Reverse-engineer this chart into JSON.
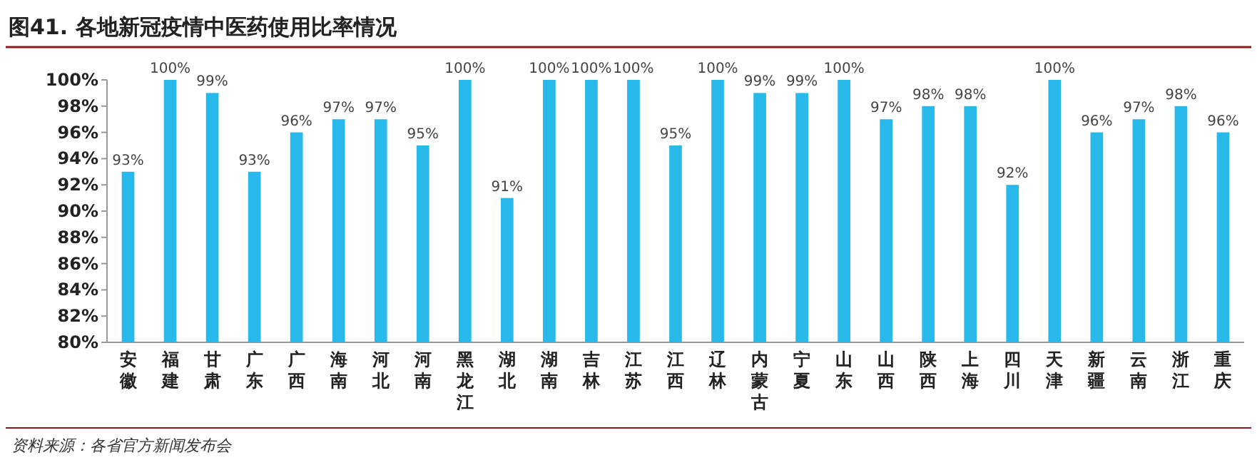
{
  "chart_data": {
    "type": "bar",
    "title": "图41. 各地新冠疫情中医药使用比率情况",
    "categories": [
      "安徽",
      "福建",
      "甘肃",
      "广东",
      "广西",
      "海南",
      "河北",
      "河南",
      "黑龙江",
      "湖北",
      "湖南",
      "吉林",
      "江苏",
      "江西",
      "辽林",
      "内蒙古",
      "宁夏",
      "山东",
      "山西",
      "陕西",
      "上海",
      "四川",
      "天津",
      "新疆",
      "云南",
      "浙江",
      "重庆"
    ],
    "values": [
      93,
      100,
      99,
      93,
      96,
      97,
      97,
      95,
      100,
      91,
      100,
      100,
      100,
      95,
      100,
      99,
      99,
      100,
      97,
      98,
      98,
      92,
      100,
      96,
      97,
      98,
      96
    ],
    "value_labels": [
      "93%",
      "100%",
      "99%",
      "93%",
      "96%",
      "97%",
      "97%",
      "95%",
      "100%",
      "91%",
      "100%",
      "100%",
      "100%",
      "95%",
      "100%",
      "99%",
      "99%",
      "100%",
      "97%",
      "98%",
      "98%",
      "92%",
      "100%",
      "96%",
      "97%",
      "98%",
      "96%"
    ],
    "color": "#27b9ea",
    "ylim": [
      80,
      100
    ],
    "yticks": [
      {
        "value": 80,
        "label": "80%"
      },
      {
        "value": 82,
        "label": "82%"
      },
      {
        "value": 84,
        "label": "84%"
      },
      {
        "value": 86,
        "label": "86%"
      },
      {
        "value": 88,
        "label": "88%"
      },
      {
        "value": 90,
        "label": "90%"
      },
      {
        "value": 92,
        "label": "92%"
      },
      {
        "value": 94,
        "label": "94%"
      },
      {
        "value": 96,
        "label": "96%"
      },
      {
        "value": 98,
        "label": "98%"
      },
      {
        "value": 100,
        "label": "100%"
      }
    ],
    "grid": false,
    "annotations": [
      "资料来源：各省官方新闻发布会"
    ]
  }
}
